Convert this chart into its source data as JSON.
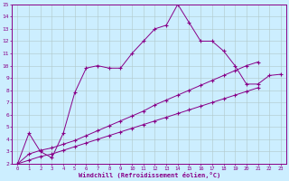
{
  "background_color": "#cceeff",
  "grid_color": "#b0c8c8",
  "line_color": "#880088",
  "xlim": [
    -0.5,
    23.5
  ],
  "ylim": [
    2,
    15
  ],
  "xtick_labels": [
    "0",
    "1",
    "2",
    "3",
    "4",
    "5",
    "6",
    "7",
    "8",
    "9",
    "10",
    "11",
    "12",
    "13",
    "14",
    "15",
    "16",
    "17",
    "18",
    "19",
    "20",
    "21",
    "22",
    "23"
  ],
  "xtick_vals": [
    0,
    1,
    2,
    3,
    4,
    5,
    6,
    7,
    8,
    9,
    10,
    11,
    12,
    13,
    14,
    15,
    16,
    17,
    18,
    19,
    20,
    21,
    22,
    23
  ],
  "ytick_vals": [
    2,
    3,
    4,
    5,
    6,
    7,
    8,
    9,
    10,
    11,
    12,
    13,
    14,
    15
  ],
  "xlabel": "Windchill (Refroidissement éolien,°C)",
  "lines": [
    {
      "x": [
        0,
        1,
        2,
        3,
        4,
        5,
        6,
        7,
        8,
        9,
        10,
        11,
        12,
        13,
        14,
        15,
        16,
        17,
        18,
        19,
        20,
        21,
        22,
        23
      ],
      "y": [
        2,
        4.5,
        3.0,
        2.5,
        4.5,
        7.8,
        9.8,
        10.0,
        9.8,
        9.8,
        11.0,
        12.0,
        13.0,
        13.3,
        15.0,
        13.5,
        12.0,
        12.0,
        11.2,
        10.0,
        8.5,
        8.5,
        9.2,
        9.3
      ]
    },
    {
      "x": [
        0,
        1,
        2,
        3,
        4,
        5,
        6,
        7,
        8,
        9,
        10,
        11,
        12,
        13,
        14,
        15,
        16,
        17,
        18,
        19,
        20,
        21
      ],
      "y": [
        2,
        2.8,
        3.1,
        3.3,
        3.6,
        3.9,
        4.3,
        4.7,
        5.1,
        5.5,
        5.9,
        6.3,
        6.8,
        7.2,
        7.6,
        8.0,
        8.4,
        8.8,
        9.2,
        9.6,
        10.0,
        10.3
      ]
    },
    {
      "x": [
        0,
        1,
        2,
        3,
        4,
        5,
        6,
        7,
        8,
        9,
        10,
        11,
        12,
        13,
        14,
        15,
        16,
        17,
        18,
        19,
        20,
        21
      ],
      "y": [
        2,
        2.3,
        2.6,
        2.8,
        3.1,
        3.4,
        3.7,
        4.0,
        4.3,
        4.6,
        4.9,
        5.2,
        5.5,
        5.8,
        6.1,
        6.4,
        6.7,
        7.0,
        7.3,
        7.6,
        7.9,
        8.2
      ]
    }
  ]
}
